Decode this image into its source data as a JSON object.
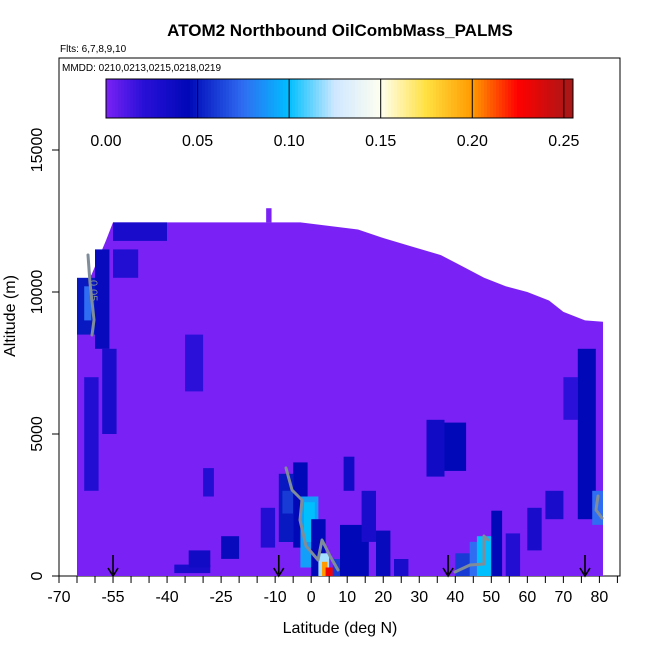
{
  "chart_data": {
    "type": "heatmap",
    "title": "ATOM2 Northbound OilCombMass_PALMS",
    "flights_note": "Flts: 6,7,8,9,10",
    "dates_note": "MMDD: 0210,0213,0215,0218,0219",
    "xlabel": "Latitude (deg N)",
    "ylabel": "Altitude (m)",
    "xlim": [
      -70,
      85
    ],
    "ylim": [
      0,
      18000
    ],
    "x_ticks": [
      -70,
      -55,
      -40,
      -25,
      -10,
      0,
      10,
      20,
      30,
      40,
      50,
      60,
      70,
      80
    ],
    "x_tick_labels": [
      "-70",
      "-55",
      "-40",
      "-25",
      "-10",
      "0",
      "10",
      "20",
      "30",
      "40",
      "50",
      "60",
      "70",
      "80"
    ],
    "y_ticks": [
      0,
      5000,
      10000,
      15000
    ],
    "y_tick_labels": [
      "0",
      "5000",
      "10000",
      "15000"
    ],
    "colorbar": {
      "range": [
        0,
        0.255
      ],
      "tick_values": [
        0,
        0.05,
        0.1,
        0.15,
        0.2,
        0.25
      ],
      "tick_labels": [
        "0.00",
        "0.05",
        "0.10",
        "0.15",
        "0.20",
        "0.25"
      ],
      "stops": [
        {
          "v": 0.0,
          "c": "#7a22f5"
        },
        {
          "v": 0.02,
          "c": "#2a10d8"
        },
        {
          "v": 0.045,
          "c": "#0008b8"
        },
        {
          "v": 0.075,
          "c": "#2f6df2"
        },
        {
          "v": 0.1,
          "c": "#00bfff"
        },
        {
          "v": 0.125,
          "c": "#cfe8ff"
        },
        {
          "v": 0.15,
          "c": "#fffff0"
        },
        {
          "v": 0.175,
          "c": "#ffe040"
        },
        {
          "v": 0.2,
          "c": "#ff9a00"
        },
        {
          "v": 0.225,
          "c": "#ff0000"
        },
        {
          "v": 0.255,
          "c": "#a51818"
        }
      ]
    },
    "contour_label": "0.05",
    "profile_latitudes": [
      -55,
      -9,
      38,
      76
    ],
    "top_envelope": [
      {
        "x": -65,
        "y": 9600
      },
      {
        "x": -63,
        "y": 10300
      },
      {
        "x": -61,
        "y": 10600
      },
      {
        "x": -59,
        "y": 11200
      },
      {
        "x": -57,
        "y": 11800
      },
      {
        "x": -55,
        "y": 12450
      },
      {
        "x": -3,
        "y": 12450
      },
      {
        "x": 13,
        "y": 12200
      },
      {
        "x": 20,
        "y": 11900
      },
      {
        "x": 28,
        "y": 11600
      },
      {
        "x": 36,
        "y": 11300
      },
      {
        "x": 42,
        "y": 10900
      },
      {
        "x": 48,
        "y": 10500
      },
      {
        "x": 54,
        "y": 10200
      },
      {
        "x": 60,
        "y": 10000
      },
      {
        "x": 66,
        "y": 9700
      },
      {
        "x": 70,
        "y": 9300
      },
      {
        "x": 76,
        "y": 9000
      },
      {
        "x": 81,
        "y": 8950
      }
    ],
    "cells": [
      {
        "x0": -65,
        "x1": -60,
        "y0": 8500,
        "y1": 10500,
        "v": 0.05
      },
      {
        "x0": -63,
        "x1": -61,
        "y0": 9000,
        "y1": 10200,
        "v": 0.075
      },
      {
        "x0": -60,
        "x1": -56,
        "y0": 8000,
        "y1": 11500,
        "v": 0.04
      },
      {
        "x0": -58,
        "x1": -54,
        "y0": 5000,
        "y1": 8000,
        "v": 0.03
      },
      {
        "x0": -63,
        "x1": -59,
        "y0": 3000,
        "y1": 7000,
        "v": 0.025
      },
      {
        "x0": -55,
        "x1": -40,
        "y0": 11800,
        "y1": 12450,
        "v": 0.03
      },
      {
        "x0": -55,
        "x1": -48,
        "y0": 10500,
        "y1": 11500,
        "v": 0.025
      },
      {
        "x0": -35,
        "x1": -30,
        "y0": 6500,
        "y1": 8500,
        "v": 0.02
      },
      {
        "x0": -30,
        "x1": -27,
        "y0": 2800,
        "y1": 3800,
        "v": 0.025
      },
      {
        "x0": -14,
        "x1": -10,
        "y0": 1000,
        "y1": 2400,
        "v": 0.025
      },
      {
        "x0": -38,
        "x1": -28,
        "y0": 100,
        "y1": 400,
        "v": 0.03
      },
      {
        "x0": -25,
        "x1": -20,
        "y0": 600,
        "y1": 1400,
        "v": 0.04
      },
      {
        "x0": -34,
        "x1": -28,
        "y0": 300,
        "y1": 900,
        "v": 0.035
      },
      {
        "x0": -9,
        "x1": -5,
        "y0": 1200,
        "y1": 3600,
        "v": 0.05
      },
      {
        "x0": -8,
        "x1": -3,
        "y0": 2200,
        "y1": 3000,
        "v": 0.06
      },
      {
        "x0": -5,
        "x1": -1,
        "y0": 1000,
        "y1": 4000,
        "v": 0.045
      },
      {
        "x0": -3,
        "x1": 2,
        "y0": 300,
        "y1": 2800,
        "v": 0.09
      },
      {
        "x0": -2,
        "x1": 1,
        "y0": 1200,
        "y1": 2600,
        "v": 0.1
      },
      {
        "x0": 0,
        "x1": 4,
        "y0": 0,
        "y1": 2000,
        "v": 0.045
      },
      {
        "x0": 2,
        "x1": 5,
        "y0": 0,
        "y1": 800,
        "v": 0.12
      },
      {
        "x0": 3,
        "x1": 4.5,
        "y0": 0,
        "y1": 500,
        "v": 0.2
      },
      {
        "x0": 4,
        "x1": 6,
        "y0": 0,
        "y1": 300,
        "v": 0.23
      },
      {
        "x0": 6,
        "x1": 8,
        "y0": 0,
        "y1": 600,
        "v": 0.06
      },
      {
        "x0": 8,
        "x1": 16,
        "y0": 0,
        "y1": 1800,
        "v": 0.045
      },
      {
        "x0": 9,
        "x1": 12,
        "y0": 3000,
        "y1": 4200,
        "v": 0.035
      },
      {
        "x0": 14,
        "x1": 18,
        "y0": 1200,
        "y1": 3000,
        "v": 0.03
      },
      {
        "x0": 18,
        "x1": 22,
        "y0": 0,
        "y1": 1600,
        "v": 0.04
      },
      {
        "x0": 23,
        "x1": 27,
        "y0": 0,
        "y1": 600,
        "v": 0.03
      },
      {
        "x0": 32,
        "x1": 37,
        "y0": 3500,
        "y1": 5500,
        "v": 0.035
      },
      {
        "x0": 37,
        "x1": 43,
        "y0": 3700,
        "y1": 5400,
        "v": 0.045
      },
      {
        "x0": 40,
        "x1": 44,
        "y0": 0,
        "y1": 800,
        "v": 0.06
      },
      {
        "x0": 44,
        "x1": 48,
        "y0": 0,
        "y1": 1200,
        "v": 0.075
      },
      {
        "x0": 46,
        "x1": 50,
        "y0": 0,
        "y1": 1400,
        "v": 0.1
      },
      {
        "x0": 50,
        "x1": 53,
        "y0": 0,
        "y1": 2300,
        "v": 0.045
      },
      {
        "x0": 54,
        "x1": 58,
        "y0": 0,
        "y1": 1500,
        "v": 0.025
      },
      {
        "x0": 60,
        "x1": 64,
        "y0": 900,
        "y1": 2400,
        "v": 0.03
      },
      {
        "x0": 65,
        "x1": 70,
        "y0": 2000,
        "y1": 3000,
        "v": 0.03
      },
      {
        "x0": 70,
        "x1": 74,
        "y0": 5500,
        "y1": 7000,
        "v": 0.02
      },
      {
        "x0": 74,
        "x1": 79,
        "y0": 2000,
        "y1": 8000,
        "v": 0.045
      },
      {
        "x0": 78,
        "x1": 81,
        "y0": 1800,
        "y1": 3000,
        "v": 0.075
      }
    ]
  }
}
